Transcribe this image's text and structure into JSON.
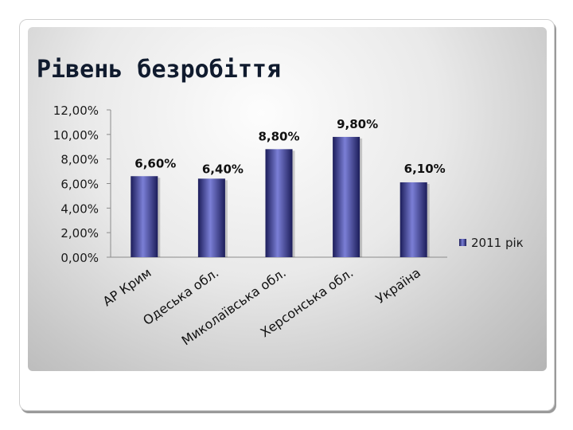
{
  "slide": {
    "title": "Рівень безробіття"
  },
  "colors": {
    "bar_light": "#7b7fd6",
    "bar_mid": "#45479a",
    "bar_dark": "#1c1d5a",
    "axis": "#8c8c8c"
  },
  "chart_data": {
    "type": "bar",
    "title": "",
    "xlabel": "",
    "ylabel": "",
    "categories": [
      "АР Крим",
      "Одеська обл.",
      "Миколаївська обл.",
      "Херсонська обл.",
      "Україна"
    ],
    "series": [
      {
        "name": "2011 рік",
        "values": [
          6.6,
          6.4,
          8.8,
          9.8,
          6.1
        ],
        "labels": [
          "6,60%",
          "6,40%",
          "8,80%",
          "9,80%",
          "6,10%"
        ]
      }
    ],
    "ylim": [
      0,
      12
    ],
    "yticks": [
      "0,00%",
      "2,00%",
      "4,00%",
      "6,00%",
      "8,00%",
      "10,00%",
      "12,00%"
    ],
    "grid": false,
    "legend": "right"
  }
}
